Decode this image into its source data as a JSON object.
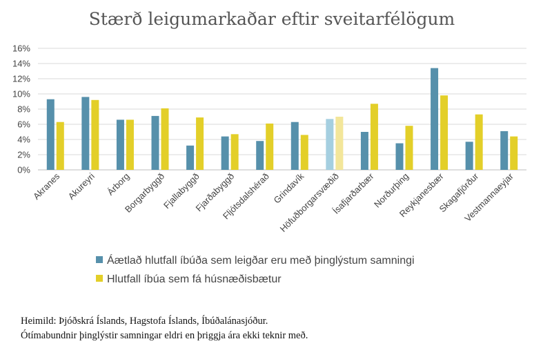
{
  "chart_data": {
    "type": "bar",
    "title": "Stærð leigumarkaðar eftir sveitarfélögum",
    "xlabel": "",
    "ylabel": "",
    "ylim": [
      0,
      16
    ],
    "yticks": [
      "0%",
      "2%",
      "4%",
      "6%",
      "8%",
      "10%",
      "12%",
      "14%",
      "16%"
    ],
    "grid": true,
    "legend_position": "bottom",
    "categories": [
      "Akranes",
      "Akureyri",
      "Árborg",
      "Borgarbyggð",
      "Fjallabyggð",
      "Fjarðabyggð",
      "Fljótsdalshérað",
      "Grindavík",
      "Höfuðborgarsvæðið",
      "Ísafjarðarbær",
      "Norðurþing",
      "Reykjanesbær",
      "Skagafjörður",
      "Vestmannaeyjar"
    ],
    "highlighted_category": "Höfuðborgarsvæðið",
    "series": [
      {
        "name": "Áætlað hlutfall íbúða sem leigðar eru með þinglýstum samningi",
        "color": "#5690ab",
        "highlight_color": "#a5cfe0",
        "values": [
          9.3,
          9.6,
          6.6,
          7.1,
          3.2,
          4.4,
          3.8,
          6.3,
          6.7,
          5.0,
          3.5,
          13.4,
          3.7,
          5.1
        ]
      },
      {
        "name": "Hlutfall íbúa sem fá húsnæðisbætur",
        "color": "#e3cf29",
        "highlight_color": "#f3e69a",
        "values": [
          6.3,
          9.2,
          6.6,
          8.1,
          6.9,
          4.7,
          6.1,
          4.6,
          7.0,
          8.7,
          5.8,
          9.8,
          7.3,
          4.4
        ]
      }
    ]
  },
  "source_lines": [
    "Heimild: Þjóðskrá Íslands, Hagstofa Íslands, Íbúðalánasjóður.",
    "Ótímabundnir þinglýstir samningar eldri en þriggja ára ekki teknir með."
  ]
}
